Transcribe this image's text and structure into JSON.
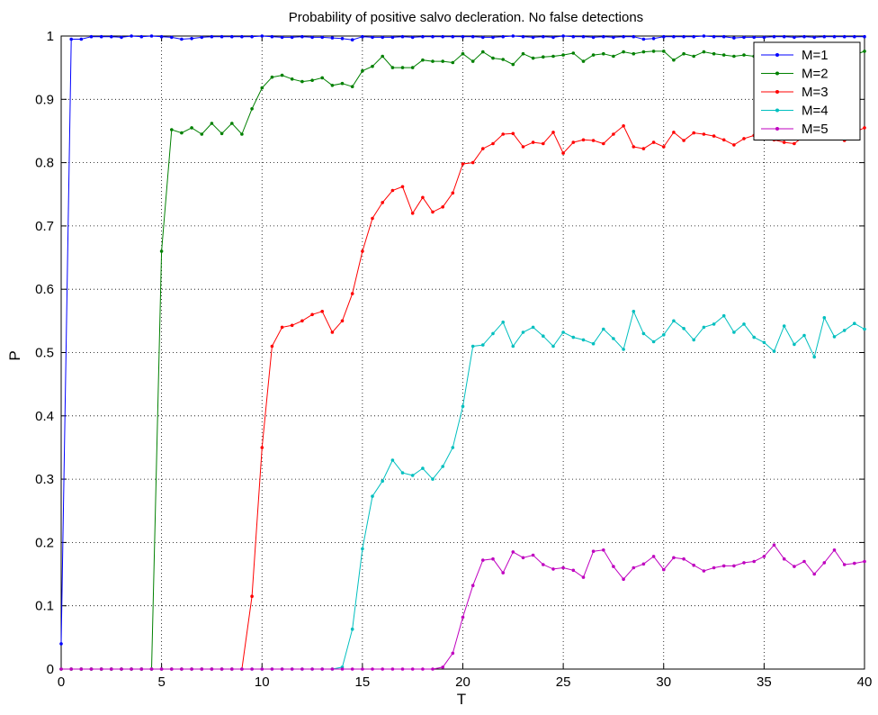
{
  "chart_data": {
    "type": "line",
    "title": "Probability of positive salvo decleration. No false detections",
    "xlabel": "T",
    "ylabel": "P",
    "xlim": [
      0,
      40
    ],
    "ylim": [
      0,
      1
    ],
    "xticks": [
      "0",
      "5",
      "10",
      "15",
      "20",
      "25",
      "30",
      "35",
      "40"
    ],
    "yticks": [
      "0",
      "0.1",
      "0.2",
      "0.3",
      "0.4",
      "0.5",
      "0.6",
      "0.7",
      "0.8",
      "0.9",
      "1"
    ],
    "grid": true,
    "legend_position": "top-right",
    "x": [
      0,
      0.5,
      1,
      1.5,
      2,
      2.5,
      3,
      3.5,
      4,
      4.5,
      5,
      5.5,
      6,
      6.5,
      7,
      7.5,
      8,
      8.5,
      9,
      9.5,
      10,
      10.5,
      11,
      11.5,
      12,
      12.5,
      13,
      13.5,
      14,
      14.5,
      15,
      15.5,
      16,
      16.5,
      17,
      17.5,
      18,
      18.5,
      19,
      19.5,
      20,
      20.5,
      21,
      21.5,
      22,
      22.5,
      23,
      23.5,
      24,
      24.5,
      25,
      25.5,
      26,
      26.5,
      27,
      27.5,
      28,
      28.5,
      29,
      29.5,
      30,
      30.5,
      31,
      31.5,
      32,
      32.5,
      33,
      33.5,
      34,
      34.5,
      35,
      35.5,
      36,
      36.5,
      37,
      37.5,
      38,
      38.5,
      39,
      39.5,
      40
    ],
    "series": [
      {
        "name": "M=1",
        "color": "#0000ff",
        "values": [
          0.04,
          0.995,
          0.995,
          0.999,
          0.999,
          0.999,
          0.998,
          1.0,
          0.999,
          1.0,
          0.999,
          0.998,
          0.995,
          0.996,
          0.998,
          0.999,
          0.999,
          0.999,
          0.999,
          0.999,
          1.0,
          0.999,
          0.998,
          0.998,
          0.999,
          0.998,
          0.998,
          0.997,
          0.996,
          0.994,
          0.999,
          0.998,
          0.998,
          0.998,
          0.999,
          0.998,
          0.999,
          0.999,
          0.999,
          0.999,
          0.999,
          0.999,
          0.998,
          0.998,
          0.999,
          1.0,
          0.999,
          0.998,
          0.999,
          0.998,
          1.0,
          0.999,
          0.999,
          0.998,
          0.999,
          0.998,
          0.999,
          0.999,
          0.995,
          0.996,
          0.999,
          0.999,
          0.999,
          0.999,
          1.0,
          0.999,
          0.999,
          0.997,
          0.998,
          0.998,
          0.998,
          0.999,
          0.999,
          0.998,
          0.999,
          0.998,
          0.999,
          0.999,
          0.999,
          0.999,
          0.999
        ]
      },
      {
        "name": "M=2",
        "color": "#008000",
        "values": [
          0,
          0,
          0,
          0,
          0,
          0,
          0,
          0,
          0,
          0,
          0.66,
          0.852,
          0.847,
          0.855,
          0.845,
          0.862,
          0.846,
          0.862,
          0.845,
          0.885,
          0.918,
          0.935,
          0.938,
          0.932,
          0.928,
          0.93,
          0.934,
          0.922,
          0.925,
          0.92,
          0.945,
          0.952,
          0.968,
          0.95,
          0.95,
          0.95,
          0.962,
          0.96,
          0.96,
          0.958,
          0.972,
          0.96,
          0.975,
          0.965,
          0.963,
          0.955,
          0.972,
          0.965,
          0.967,
          0.968,
          0.97,
          0.973,
          0.96,
          0.97,
          0.972,
          0.968,
          0.975,
          0.972,
          0.975,
          0.976,
          0.976,
          0.962,
          0.972,
          0.968,
          0.975,
          0.972,
          0.97,
          0.968,
          0.97,
          0.968,
          0.972,
          0.968,
          0.97,
          0.965,
          0.97,
          0.975,
          0.965,
          0.972,
          0.968,
          0.97,
          0.976
        ]
      },
      {
        "name": "M=3",
        "color": "#ff0000",
        "values": [
          0,
          0,
          0,
          0,
          0,
          0,
          0,
          0,
          0,
          0,
          0,
          0,
          0,
          0,
          0,
          0,
          0,
          0,
          0,
          0.115,
          0.35,
          0.51,
          0.54,
          0.543,
          0.55,
          0.56,
          0.565,
          0.532,
          0.55,
          0.593,
          0.66,
          0.712,
          0.737,
          0.756,
          0.762,
          0.72,
          0.745,
          0.722,
          0.73,
          0.752,
          0.798,
          0.8,
          0.822,
          0.83,
          0.845,
          0.846,
          0.825,
          0.832,
          0.83,
          0.848,
          0.815,
          0.832,
          0.836,
          0.835,
          0.83,
          0.845,
          0.858,
          0.825,
          0.822,
          0.832,
          0.825,
          0.848,
          0.835,
          0.847,
          0.845,
          0.842,
          0.836,
          0.828,
          0.838,
          0.843,
          0.848,
          0.836,
          0.832,
          0.83,
          0.842,
          0.846,
          0.838,
          0.843,
          0.835,
          0.848,
          0.855
        ]
      },
      {
        "name": "M=4",
        "color": "#00bfbf",
        "values": [
          0,
          0,
          0,
          0,
          0,
          0,
          0,
          0,
          0,
          0,
          0,
          0,
          0,
          0,
          0,
          0,
          0,
          0,
          0,
          0,
          0,
          0,
          0,
          0,
          0,
          0,
          0,
          0,
          0.003,
          0.063,
          0.19,
          0.273,
          0.297,
          0.33,
          0.31,
          0.306,
          0.317,
          0.3,
          0.32,
          0.35,
          0.415,
          0.51,
          0.512,
          0.53,
          0.548,
          0.51,
          0.532,
          0.54,
          0.526,
          0.51,
          0.532,
          0.524,
          0.52,
          0.514,
          0.537,
          0.522,
          0.505,
          0.565,
          0.53,
          0.517,
          0.528,
          0.55,
          0.538,
          0.52,
          0.54,
          0.545,
          0.558,
          0.532,
          0.545,
          0.524,
          0.516,
          0.502,
          0.542,
          0.513,
          0.527,
          0.493,
          0.555,
          0.525,
          0.535,
          0.546,
          0.537
        ]
      },
      {
        "name": "M=5",
        "color": "#bf00bf",
        "values": [
          0,
          0,
          0,
          0,
          0,
          0,
          0,
          0,
          0,
          0,
          0,
          0,
          0,
          0,
          0,
          0,
          0,
          0,
          0,
          0,
          0,
          0,
          0,
          0,
          0,
          0,
          0,
          0,
          0,
          0,
          0,
          0,
          0,
          0,
          0,
          0,
          0,
          0,
          0.003,
          0.025,
          0.082,
          0.132,
          0.172,
          0.174,
          0.152,
          0.185,
          0.176,
          0.18,
          0.165,
          0.158,
          0.16,
          0.156,
          0.145,
          0.186,
          0.188,
          0.162,
          0.142,
          0.16,
          0.166,
          0.178,
          0.157,
          0.176,
          0.174,
          0.164,
          0.155,
          0.16,
          0.163,
          0.163,
          0.168,
          0.17,
          0.178,
          0.196,
          0.174,
          0.162,
          0.17,
          0.15,
          0.168,
          0.188,
          0.165,
          0.167,
          0.17
        ]
      }
    ]
  }
}
